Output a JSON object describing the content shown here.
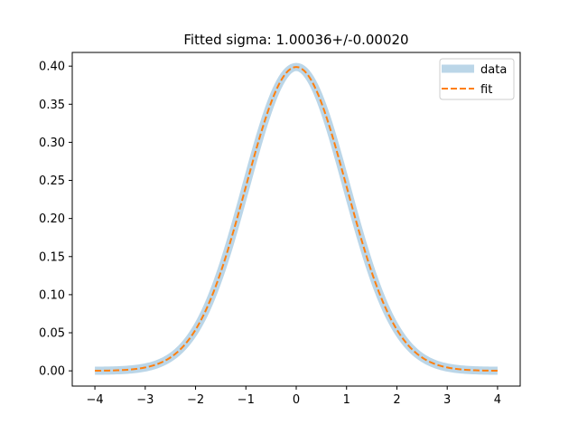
{
  "chart_data": {
    "type": "line",
    "title": "Fitted sigma: 1.00036+/-0.00020",
    "xlabel": "",
    "ylabel": "",
    "xlim": [
      -4.45,
      4.45
    ],
    "ylim": [
      -0.02,
      0.418
    ],
    "x_ticks": [
      -4,
      -3,
      -2,
      -1,
      0,
      1,
      2,
      3,
      4
    ],
    "x_tick_labels": [
      "−4",
      "−3",
      "−2",
      "−1",
      "0",
      "1",
      "2",
      "3",
      "4"
    ],
    "y_ticks": [
      0.0,
      0.05,
      0.1,
      0.15,
      0.2,
      0.25,
      0.3,
      0.35,
      0.4
    ],
    "y_tick_labels": [
      "0.00",
      "0.05",
      "0.10",
      "0.15",
      "0.20",
      "0.25",
      "0.30",
      "0.35",
      "0.40"
    ],
    "grid": false,
    "legend_position": "top-right",
    "series": [
      {
        "name": "data",
        "color": "#1f77b4",
        "opacity": 0.3,
        "style": "solid-thick",
        "x": [
          -4.0,
          -3.5,
          -3.0,
          -2.5,
          -2.0,
          -1.5,
          -1.0,
          -0.5,
          0.0,
          0.5,
          1.0,
          1.5,
          2.0,
          2.5,
          3.0,
          3.5,
          4.0
        ],
        "y": [
          0.0001,
          0.0009,
          0.0044,
          0.0175,
          0.054,
          0.1295,
          0.242,
          0.352,
          0.3989,
          0.352,
          0.242,
          0.1295,
          0.054,
          0.0175,
          0.0044,
          0.0009,
          0.0001
        ]
      },
      {
        "name": "fit",
        "color": "#ff7f0e",
        "opacity": 1,
        "style": "dashed",
        "x": [
          -4.0,
          -3.5,
          -3.0,
          -2.5,
          -2.0,
          -1.5,
          -1.0,
          -0.5,
          0.0,
          0.5,
          1.0,
          1.5,
          2.0,
          2.5,
          3.0,
          3.5,
          4.0
        ],
        "y": [
          0.0001,
          0.0009,
          0.0044,
          0.0175,
          0.054,
          0.1295,
          0.242,
          0.352,
          0.3989,
          0.352,
          0.242,
          0.1295,
          0.054,
          0.0175,
          0.0044,
          0.0009,
          0.0001
        ]
      }
    ]
  }
}
